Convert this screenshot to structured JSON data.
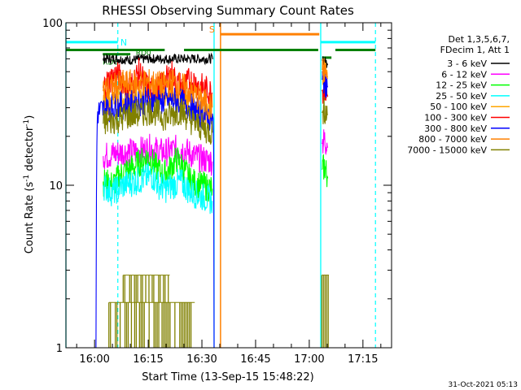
{
  "chart_data": {
    "type": "line",
    "title": "RHESSI Observing Summary Count Rates",
    "xlabel": "Start Time (13-Sep-15 15:48:22)",
    "ylabel_main": "Count Rate (s",
    "ylabel_sup": "-1",
    "ylabel_tail": " detector",
    "ylabel_close": ")",
    "yscale": "log",
    "ylim": [
      1,
      100
    ],
    "xlim_min": [
      -8,
      83
    ],
    "y_ticks": [
      {
        "v": 1,
        "label": "1"
      },
      {
        "v": 10,
        "label": "10"
      },
      {
        "v": 100,
        "label": "100"
      }
    ],
    "x_ticks": [
      {
        "m": 0,
        "label": "16:00"
      },
      {
        "m": 15,
        "label": "16:15"
      },
      {
        "m": 30,
        "label": "16:30"
      },
      {
        "m": 45,
        "label": "16:45"
      },
      {
        "m": 60,
        "label": "17:00"
      },
      {
        "m": 75,
        "label": "17:15"
      }
    ],
    "legend_header": [
      "Det 1,3,5,6,7,",
      "FDecim 1, Att 1"
    ],
    "series": [
      {
        "name": "3 - 6 keV",
        "color": "#000000",
        "segments": [
          [
            [
              2.3,
              60
            ],
            [
              6,
              60
            ],
            [
              10,
              59
            ],
            [
              14,
              60
            ],
            [
              18,
              60
            ],
            [
              22,
              60
            ],
            [
              26,
              60
            ],
            [
              30,
              60
            ],
            [
              33.2,
              60
            ]
          ],
          [
            [
              63.5,
              59
            ],
            [
              64.5,
              58
            ],
            [
              65.2,
              55
            ]
          ]
        ]
      },
      {
        "name": "6 - 12 keV",
        "color": "#ff00ff",
        "segments": [
          [
            [
              2.3,
              15
            ],
            [
              5,
              15.5
            ],
            [
              8,
              16
            ],
            [
              11,
              16
            ],
            [
              14,
              16.5
            ],
            [
              16,
              17
            ],
            [
              18,
              16
            ],
            [
              20,
              16
            ],
            [
              22,
              16.5
            ],
            [
              24,
              17
            ],
            [
              26,
              16
            ],
            [
              28,
              15
            ],
            [
              30,
              14.5
            ],
            [
              33,
              14
            ]
          ],
          [
            [
              63.5,
              18
            ],
            [
              64.3,
              19
            ],
            [
              65.2,
              17
            ]
          ]
        ]
      },
      {
        "name": "12 - 25 keV",
        "color": "#00ff00",
        "segments": [
          [
            [
              2.3,
              10.5
            ],
            [
              5,
              10
            ],
            [
              8,
              12
            ],
            [
              11,
              13
            ],
            [
              13,
              14
            ],
            [
              15,
              15
            ],
            [
              17,
              13
            ],
            [
              19,
              11.5
            ],
            [
              21,
              12.5
            ],
            [
              23,
              14.5
            ],
            [
              25,
              12.5
            ],
            [
              27,
              10.5
            ],
            [
              30,
              10
            ],
            [
              33,
              9.5
            ]
          ],
          [
            [
              63.5,
              12.5
            ],
            [
              64.3,
              13
            ],
            [
              65.2,
              11
            ]
          ]
        ]
      },
      {
        "name": "25 - 50 keV",
        "color": "#00ffff",
        "segments": [
          [
            [
              2.3,
              10
            ],
            [
              5,
              9
            ],
            [
              8,
              10
            ],
            [
              11,
              10.5
            ],
            [
              14,
              11
            ],
            [
              16,
              11.5
            ],
            [
              18,
              10
            ],
            [
              20,
              9.5
            ],
            [
              22,
              10
            ],
            [
              24,
              10.5
            ],
            [
              27,
              9
            ],
            [
              30,
              8.5
            ],
            [
              33,
              8
            ]
          ]
        ]
      },
      {
        "name": "50 - 100 keV",
        "color": "#ffa500",
        "segments": [
          [
            [
              2.3,
              32
            ],
            [
              5,
              34
            ],
            [
              8,
              35
            ],
            [
              11,
              36
            ],
            [
              14,
              37
            ],
            [
              17,
              37
            ],
            [
              20,
              36
            ],
            [
              23,
              36
            ],
            [
              26,
              34
            ],
            [
              29,
              30
            ],
            [
              33,
              27
            ]
          ],
          [
            [
              63.5,
              50
            ],
            [
              64.3,
              49
            ],
            [
              65.2,
              45
            ]
          ]
        ]
      },
      {
        "name": "100 - 300 keV",
        "color": "#ff0000",
        "segments": [
          [
            [
              2.3,
              40
            ],
            [
              4,
              44
            ],
            [
              6,
              48
            ],
            [
              8,
              44
            ],
            [
              10,
              40
            ],
            [
              11.5,
              46
            ],
            [
              12.5,
              50
            ],
            [
              14,
              42
            ],
            [
              16,
              38
            ],
            [
              18,
              39
            ],
            [
              20,
              44
            ],
            [
              21.5,
              49
            ],
            [
              23,
              42
            ],
            [
              25,
              40
            ],
            [
              26.5,
              44
            ],
            [
              28,
              43
            ],
            [
              30,
              40
            ],
            [
              33,
              37
            ]
          ],
          [
            [
              63.5,
              38
            ],
            [
              64.3,
              40
            ],
            [
              65.2,
              35
            ]
          ]
        ]
      },
      {
        "name": "300 - 800 keV",
        "color": "#0000ff",
        "segments": [
          [
            [
              0.4,
              1
            ],
            [
              0.8,
              28
            ],
            [
              4,
              30
            ],
            [
              8,
              31
            ],
            [
              11,
              32
            ],
            [
              14,
              33
            ],
            [
              17,
              33
            ],
            [
              20,
              33
            ],
            [
              23,
              33
            ],
            [
              26,
              31
            ],
            [
              29,
              28
            ],
            [
              32,
              26
            ],
            [
              33.2,
              25
            ],
            [
              33.4,
              1
            ]
          ],
          [
            [
              63.5,
              45
            ],
            [
              64.3,
              44
            ],
            [
              65.2,
              40
            ]
          ]
        ]
      },
      {
        "name": "800 - 7000 keV",
        "color": "#ff8000",
        "segments": [
          [
            [
              2.3,
              38
            ],
            [
              5,
              40
            ],
            [
              8,
              42
            ],
            [
              11,
              42
            ],
            [
              14,
              43
            ],
            [
              17,
              42
            ],
            [
              19,
              41
            ],
            [
              22,
              43
            ],
            [
              25,
              40
            ],
            [
              28,
              36
            ],
            [
              31,
              32
            ],
            [
              33,
              30
            ]
          ],
          [
            [
              63.5,
              52
            ],
            [
              64.3,
              50
            ],
            [
              65.2,
              46
            ]
          ]
        ]
      },
      {
        "name": "7000 - 15000 keV",
        "color": "#808000",
        "segments": [
          [
            [
              2.3,
              24
            ],
            [
              5,
              25
            ],
            [
              8,
              26
            ],
            [
              10,
              27
            ],
            [
              12,
              27.5
            ],
            [
              14,
              28
            ],
            [
              16,
              29
            ],
            [
              18,
              27.5
            ],
            [
              20,
              26
            ],
            [
              22,
              27.5
            ],
            [
              24,
              29
            ],
            [
              26,
              26
            ],
            [
              28,
              24
            ],
            [
              31,
              22
            ],
            [
              33,
              21
            ]
          ],
          [
            [
              63.5,
              28
            ],
            [
              64.3,
              29
            ],
            [
              65.2,
              27
            ]
          ]
        ]
      }
    ],
    "band_0": {
      "top": 2.8,
      "bottom": 1.9,
      "start": 8,
      "end": 21
    },
    "band_1": {
      "top": 1.9,
      "bottom": 1.0,
      "start": 4,
      "end": 28
    },
    "band_2": {
      "top": 2.8,
      "bottom": 1.0,
      "start": 63.5,
      "end": 65.5
    },
    "night_marks": {
      "label": "N",
      "color": "#00ffff",
      "solid": [
        -8,
        33.4,
        63.2
      ],
      "dashed": [
        6.5,
        78.5
      ]
    },
    "saa_marks": {
      "label": "S",
      "color": "#ff8000",
      "line": 35.2,
      "bar_start": 35.2,
      "bar_end": 62.8,
      "bar_y": 85
    },
    "night_bars": [
      {
        "start": -8,
        "end": 6.5,
        "y": 76
      },
      {
        "start": 63.2,
        "end": 78.5,
        "y": 76
      }
    ],
    "decim_bars": [
      {
        "start": -8,
        "end": 19.6,
        "y": 68
      },
      {
        "start": 25,
        "end": 62.5,
        "y": 68
      },
      {
        "start": 67.3,
        "end": 78.5,
        "y": 68
      },
      {
        "start": 2.3,
        "end": 10,
        "y": 64
      },
      {
        "start": 63.6,
        "end": 66.2,
        "y": 61
      }
    ],
    "rd_labels": [
      {
        "m": 2.3,
        "y": 58,
        "text": "RD6"
      },
      {
        "m": 11.5,
        "y": 66,
        "text": "RD0"
      }
    ],
    "footer": "31-Oct-2021 05:13"
  }
}
